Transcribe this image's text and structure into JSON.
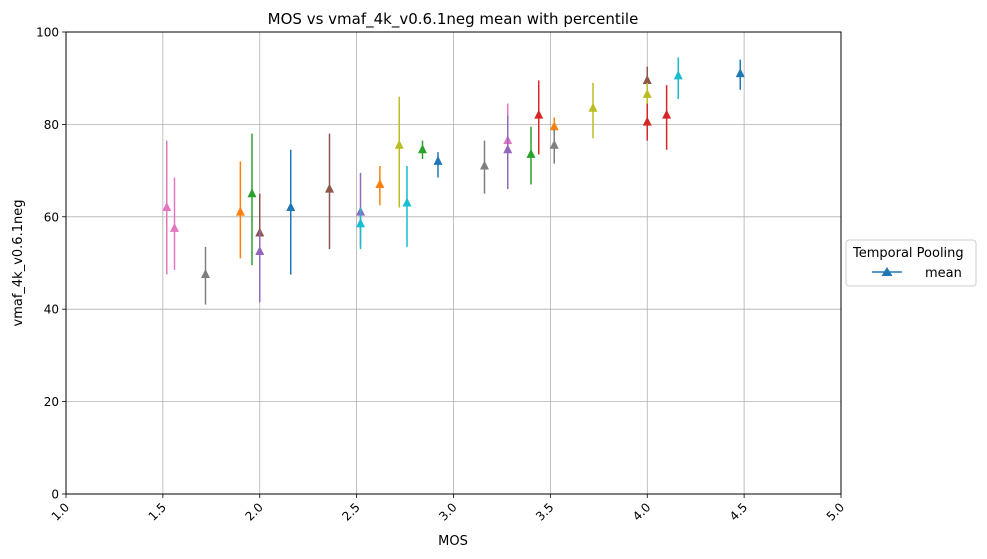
{
  "chart_data": {
    "type": "scatter",
    "title": "MOS vs vmaf_4k_v0.6.1neg mean with percentile",
    "xlabel": "MOS",
    "ylabel": "vmaf_4k_v0.6.1neg",
    "xlim": [
      1.0,
      5.0
    ],
    "ylim": [
      0,
      100
    ],
    "xticks": [
      "1.0",
      "1.5",
      "2.0",
      "2.5",
      "3.0",
      "3.5",
      "4.0",
      "4.5",
      "5.0"
    ],
    "yticks": [
      "0",
      "20",
      "40",
      "60",
      "80",
      "100"
    ],
    "grid": true,
    "legend": {
      "title": "Temporal Pooling",
      "placement": "right",
      "entries": [
        "mean"
      ],
      "color": "#1f77b4"
    },
    "points": [
      {
        "x": 1.52,
        "y": 62.0,
        "low": 47.5,
        "high": 76.5,
        "color": "#e377c2"
      },
      {
        "x": 1.56,
        "y": 57.5,
        "low": 48.5,
        "high": 68.5,
        "color": "#e377c2"
      },
      {
        "x": 1.72,
        "y": 47.5,
        "low": 41.0,
        "high": 53.5,
        "color": "#7f7f7f"
      },
      {
        "x": 1.9,
        "y": 61.0,
        "low": 51.0,
        "high": 72.0,
        "color": "#ff7f0e"
      },
      {
        "x": 1.96,
        "y": 65.0,
        "low": 49.5,
        "high": 78.0,
        "color": "#2ca02c"
      },
      {
        "x": 2.0,
        "y": 56.5,
        "low": 48.0,
        "high": 65.0,
        "color": "#8c564b"
      },
      {
        "x": 2.0,
        "y": 52.5,
        "low": 41.5,
        "high": 57.0,
        "color": "#9467bd"
      },
      {
        "x": 2.16,
        "y": 62.0,
        "low": 47.5,
        "high": 74.5,
        "color": "#1f77b4"
      },
      {
        "x": 2.36,
        "y": 66.0,
        "low": 53.0,
        "high": 78.0,
        "color": "#8c564b"
      },
      {
        "x": 2.52,
        "y": 61.0,
        "low": 53.5,
        "high": 69.5,
        "color": "#9467bd"
      },
      {
        "x": 2.52,
        "y": 58.5,
        "low": 53.0,
        "high": 62.0,
        "color": "#17becf"
      },
      {
        "x": 2.62,
        "y": 67.0,
        "low": 62.5,
        "high": 71.0,
        "color": "#ff7f0e"
      },
      {
        "x": 2.72,
        "y": 75.5,
        "low": 62.0,
        "high": 86.0,
        "color": "#bcbd22"
      },
      {
        "x": 2.76,
        "y": 63.0,
        "low": 53.5,
        "high": 71.0,
        "color": "#17becf"
      },
      {
        "x": 2.84,
        "y": 74.5,
        "low": 72.5,
        "high": 76.5,
        "color": "#2ca02c"
      },
      {
        "x": 2.92,
        "y": 72.0,
        "low": 68.5,
        "high": 74.0,
        "color": "#1f77b4"
      },
      {
        "x": 3.16,
        "y": 71.0,
        "low": 65.0,
        "high": 76.5,
        "color": "#7f7f7f"
      },
      {
        "x": 3.28,
        "y": 76.5,
        "low": 67.0,
        "high": 84.5,
        "color": "#e377c2"
      },
      {
        "x": 3.28,
        "y": 74.5,
        "low": 66.0,
        "high": 82.0,
        "color": "#9467bd"
      },
      {
        "x": 3.4,
        "y": 73.5,
        "low": 67.0,
        "high": 79.5,
        "color": "#2ca02c"
      },
      {
        "x": 3.44,
        "y": 82.0,
        "low": 73.5,
        "high": 89.5,
        "color": "#d62728"
      },
      {
        "x": 3.52,
        "y": 79.5,
        "low": 76.0,
        "high": 81.5,
        "color": "#ff7f0e"
      },
      {
        "x": 3.52,
        "y": 75.5,
        "low": 71.5,
        "high": 79.0,
        "color": "#7f7f7f"
      },
      {
        "x": 3.72,
        "y": 83.5,
        "low": 77.0,
        "high": 89.0,
        "color": "#bcbd22"
      },
      {
        "x": 4.0,
        "y": 89.5,
        "low": 86.0,
        "high": 92.5,
        "color": "#8c564b"
      },
      {
        "x": 4.0,
        "y": 86.5,
        "low": 83.0,
        "high": 89.0,
        "color": "#bcbd22"
      },
      {
        "x": 4.0,
        "y": 80.5,
        "low": 76.5,
        "high": 84.5,
        "color": "#d62728"
      },
      {
        "x": 4.1,
        "y": 82.0,
        "low": 74.5,
        "high": 88.5,
        "color": "#d62728"
      },
      {
        "x": 4.16,
        "y": 90.5,
        "low": 85.5,
        "high": 94.5,
        "color": "#17becf"
      },
      {
        "x": 4.48,
        "y": 91.0,
        "low": 87.5,
        "high": 94.0,
        "color": "#1f77b4"
      }
    ]
  }
}
